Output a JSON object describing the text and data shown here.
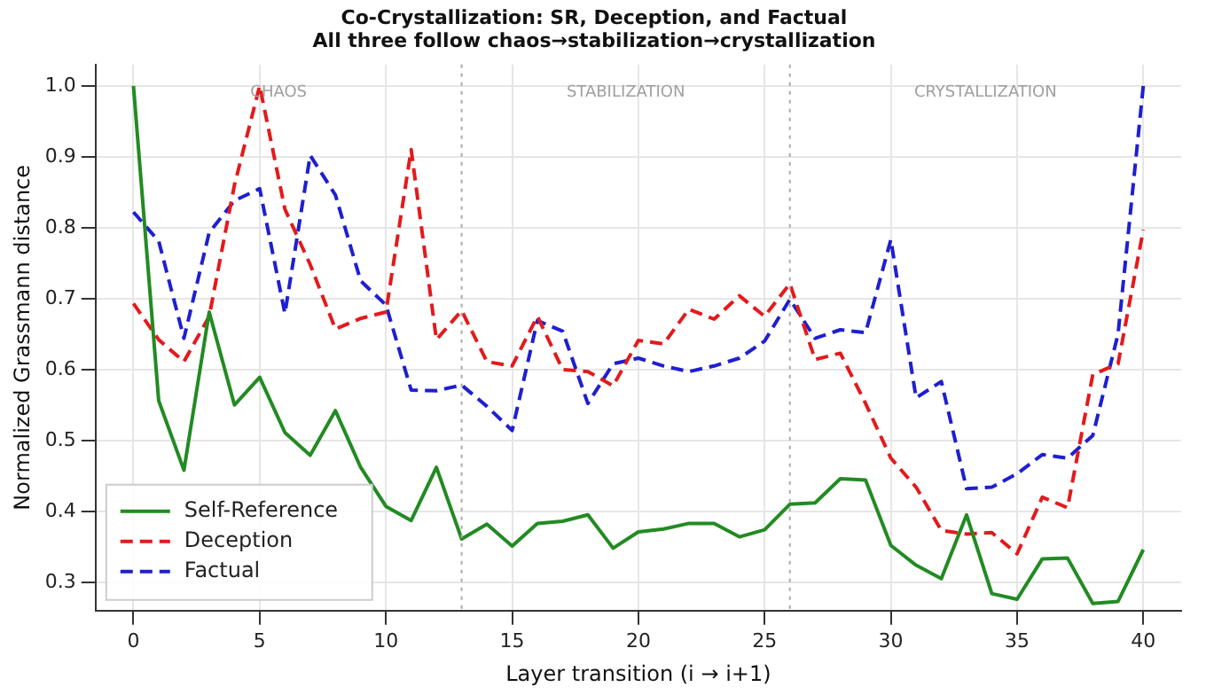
{
  "chart_data": {
    "type": "line",
    "title": "Co-Crystallization: SR, Deception, and Factual",
    "subtitle": "All three follow chaos→stabilization→crystallization",
    "xlabel": "Layer transition (i → i+1)",
    "ylabel": "Normalized Grassmann distance",
    "x": [
      0,
      1,
      2,
      3,
      4,
      5,
      6,
      7,
      8,
      9,
      10,
      11,
      12,
      13,
      14,
      15,
      16,
      17,
      18,
      19,
      20,
      21,
      22,
      23,
      24,
      25,
      26,
      27,
      28,
      29,
      30,
      31,
      32,
      33,
      34,
      35,
      36,
      37,
      38,
      39,
      40
    ],
    "series": [
      {
        "name": "Self-Reference",
        "color": "#228b22",
        "line_style": "solid",
        "values": [
          1.0,
          0.556,
          0.458,
          0.681,
          0.55,
          0.589,
          0.511,
          0.479,
          0.542,
          0.462,
          0.407,
          0.387,
          0.462,
          0.361,
          0.382,
          0.351,
          0.383,
          0.386,
          0.395,
          0.348,
          0.371,
          0.375,
          0.383,
          0.383,
          0.364,
          0.374,
          0.41,
          0.412,
          0.446,
          0.444,
          0.352,
          0.324,
          0.305,
          0.395,
          0.284,
          0.276,
          0.333,
          0.334,
          0.27,
          0.273,
          0.346
        ]
      },
      {
        "name": "Deception",
        "color": "#e31a1c",
        "line_style": "dashed",
        "values": [
          0.693,
          0.642,
          0.611,
          0.675,
          0.86,
          1.0,
          0.826,
          0.748,
          0.657,
          0.672,
          0.681,
          0.91,
          0.642,
          0.683,
          0.611,
          0.605,
          0.675,
          0.6,
          0.597,
          0.577,
          0.641,
          0.636,
          0.685,
          0.671,
          0.704,
          0.675,
          0.721,
          0.614,
          0.623,
          0.552,
          0.475,
          0.434,
          0.373,
          0.368,
          0.37,
          0.34,
          0.42,
          0.405,
          0.593,
          0.608,
          0.797
        ]
      },
      {
        "name": "Factual",
        "color": "#1f1fd0",
        "line_style": "dashed",
        "values": [
          0.822,
          0.781,
          0.644,
          0.793,
          0.838,
          0.855,
          0.679,
          0.902,
          0.846,
          0.725,
          0.691,
          0.571,
          0.57,
          0.578,
          0.548,
          0.514,
          0.669,
          0.654,
          0.552,
          0.608,
          0.616,
          0.605,
          0.597,
          0.605,
          0.616,
          0.64,
          0.699,
          0.644,
          0.656,
          0.652,
          0.783,
          0.56,
          0.583,
          0.432,
          0.434,
          0.453,
          0.48,
          0.475,
          0.507,
          0.65,
          1.0
        ]
      }
    ],
    "xlim": [
      -1.5,
      41.5
    ],
    "xticks": [
      0,
      5,
      10,
      15,
      20,
      25,
      30,
      35,
      40
    ],
    "ylim": [
      0.26,
      1.03
    ],
    "yticks": [
      {
        "value": 0.3,
        "label": "0.3"
      },
      {
        "value": 0.4,
        "label": "0.4"
      },
      {
        "value": 0.5,
        "label": "0.5"
      },
      {
        "value": 0.6,
        "label": "0.6"
      },
      {
        "value": 0.7,
        "label": "0.7"
      },
      {
        "value": 0.8,
        "label": "0.8"
      },
      {
        "value": 0.9,
        "label": "0.9"
      },
      {
        "value": 1.0,
        "label": "1.0"
      }
    ],
    "ref_lines": [
      {
        "axis": "x",
        "value": 13,
        "color": "#aaaaaa",
        "line_style": "dotted"
      },
      {
        "axis": "x",
        "value": 26,
        "color": "#aaaaaa",
        "line_style": "dotted"
      }
    ],
    "annotations": [
      "CHAOS",
      "STABILIZATION",
      "CRYSTALLIZATION"
    ],
    "grid": true,
    "legend": "bottom left",
    "marker": "none"
  }
}
